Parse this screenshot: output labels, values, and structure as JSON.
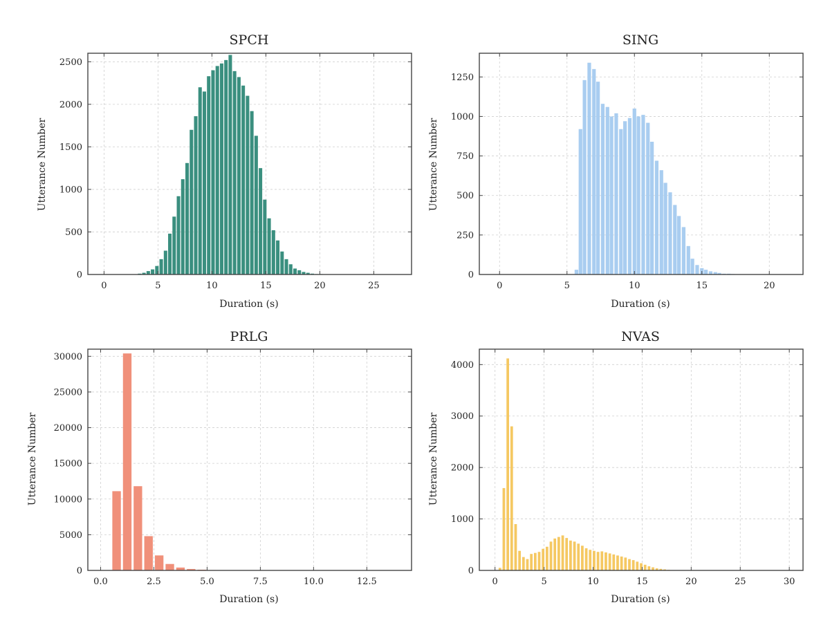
{
  "chart_data": [
    {
      "type": "bar",
      "title": "SPCH",
      "xlabel": "Duration (s)",
      "ylabel": "Utterance Number",
      "xlim": [
        -1.5,
        28.5
      ],
      "ylim": [
        0,
        2600
      ],
      "xticks": [
        0,
        5,
        10,
        15,
        20,
        25
      ],
      "xtick_labels": [
        "0",
        "5",
        "10",
        "15",
        "20",
        "25"
      ],
      "yticks": [
        0,
        500,
        1000,
        1500,
        2000,
        2500
      ],
      "ytick_labels": [
        "0",
        "500",
        "1000",
        "1500",
        "2000",
        "2500"
      ],
      "grid": true,
      "color": "#3a8f7f",
      "bin_width": 0.4,
      "x": [
        3.3,
        3.7,
        4.1,
        4.5,
        4.9,
        5.3,
        5.7,
        6.1,
        6.5,
        6.9,
        7.3,
        7.7,
        8.1,
        8.5,
        8.9,
        9.3,
        9.7,
        10.1,
        10.5,
        10.9,
        11.3,
        11.7,
        12.1,
        12.5,
        12.9,
        13.3,
        13.7,
        14.1,
        14.5,
        14.9,
        15.3,
        15.7,
        16.1,
        16.5,
        16.9,
        17.3,
        17.7,
        18.1,
        18.5,
        18.9,
        19.3,
        19.7,
        20.1
      ],
      "values": [
        10,
        20,
        40,
        60,
        100,
        180,
        280,
        480,
        680,
        920,
        1120,
        1310,
        1700,
        1860,
        2200,
        2150,
        2330,
        2400,
        2450,
        2480,
        2520,
        2580,
        2390,
        2320,
        2220,
        2100,
        1920,
        1630,
        1250,
        880,
        660,
        520,
        400,
        270,
        180,
        120,
        70,
        50,
        30,
        20,
        10,
        5,
        5
      ]
    },
    {
      "type": "bar",
      "title": "SING",
      "xlabel": "Duration (s)",
      "ylabel": "Utterance Number",
      "xlim": [
        -1.5,
        22.5
      ],
      "ylim": [
        0,
        1400
      ],
      "xticks": [
        0,
        5,
        10,
        15,
        20
      ],
      "xtick_labels": [
        "0",
        "5",
        "10",
        "15",
        "20"
      ],
      "yticks": [
        0,
        250,
        500,
        750,
        1000,
        1250
      ],
      "ytick_labels": [
        "0",
        "250",
        "500",
        "750",
        "1000",
        "1250"
      ],
      "grid": true,
      "color": "#a9cdf0",
      "bin_width": 0.33,
      "x": [
        5.7,
        6.0,
        6.3,
        6.65,
        7.0,
        7.3,
        7.65,
        8.0,
        8.3,
        8.65,
        9.0,
        9.3,
        9.65,
        10.0,
        10.3,
        10.65,
        11.0,
        11.3,
        11.65,
        12.0,
        12.3,
        12.65,
        13.0,
        13.3,
        13.65,
        14.0,
        14.3,
        14.65,
        15.0,
        15.3,
        15.65,
        16.0,
        16.3,
        16.65,
        17.0,
        17.3,
        17.65
      ],
      "values": [
        30,
        920,
        1230,
        1340,
        1300,
        1220,
        1080,
        1060,
        1000,
        1020,
        920,
        970,
        990,
        1050,
        1000,
        1010,
        960,
        840,
        720,
        660,
        580,
        520,
        440,
        370,
        300,
        180,
        100,
        60,
        40,
        30,
        20,
        15,
        10,
        5,
        5,
        3,
        2
      ]
    },
    {
      "type": "bar",
      "title": "PRLG",
      "xlabel": "Duration (s)",
      "ylabel": "Utterance Number",
      "xlim": [
        -0.6,
        14.6
      ],
      "ylim": [
        0,
        31000
      ],
      "xticks": [
        0.0,
        2.5,
        5.0,
        7.5,
        10.0,
        12.5
      ],
      "xtick_labels": [
        "0.0",
        "2.5",
        "5.0",
        "7.5",
        "10.0",
        "12.5"
      ],
      "yticks": [
        0,
        5000,
        10000,
        15000,
        20000,
        25000,
        30000
      ],
      "ytick_labels": [
        "0",
        "5000",
        "10000",
        "15000",
        "20000",
        "25000",
        "30000"
      ],
      "grid": true,
      "color": "#f0907a",
      "bin_width": 0.44,
      "x": [
        0.75,
        1.25,
        1.75,
        2.25,
        2.75,
        3.25,
        3.75,
        4.25,
        4.75,
        5.25,
        5.75
      ],
      "values": [
        11100,
        30400,
        11800,
        4800,
        2100,
        900,
        400,
        200,
        100,
        50,
        20
      ]
    },
    {
      "type": "bar",
      "title": "NVAS",
      "xlabel": "Duration (s)",
      "ylabel": "Utterance Number",
      "xlim": [
        -1.6,
        31.4
      ],
      "ylim": [
        0,
        4300
      ],
      "xticks": [
        0,
        5,
        10,
        15,
        20,
        25,
        30
      ],
      "xtick_labels": [
        "0",
        "5",
        "10",
        "15",
        "20",
        "25",
        "30"
      ],
      "yticks": [
        0,
        1000,
        2000,
        3000,
        4000
      ],
      "ytick_labels": [
        "0",
        "1000",
        "2000",
        "3000",
        "4000"
      ],
      "grid": true,
      "color": "#f5c862",
      "bin_width": 0.35,
      "x": [
        0.5,
        0.9,
        1.3,
        1.7,
        2.1,
        2.5,
        2.9,
        3.3,
        3.7,
        4.1,
        4.5,
        4.9,
        5.3,
        5.7,
        6.1,
        6.5,
        6.9,
        7.3,
        7.7,
        8.1,
        8.5,
        8.9,
        9.3,
        9.7,
        10.1,
        10.5,
        10.9,
        11.3,
        11.7,
        12.1,
        12.5,
        12.9,
        13.3,
        13.7,
        14.1,
        14.5,
        14.9,
        15.3,
        15.7,
        16.1,
        16.5,
        16.9,
        17.3,
        17.7,
        18.1
      ],
      "values": [
        50,
        1600,
        4120,
        2800,
        900,
        380,
        260,
        220,
        320,
        340,
        360,
        420,
        460,
        560,
        620,
        650,
        680,
        630,
        580,
        560,
        520,
        480,
        430,
        400,
        380,
        360,
        370,
        350,
        330,
        310,
        290,
        270,
        250,
        220,
        200,
        170,
        140,
        110,
        80,
        60,
        40,
        30,
        20,
        10,
        5
      ]
    }
  ]
}
